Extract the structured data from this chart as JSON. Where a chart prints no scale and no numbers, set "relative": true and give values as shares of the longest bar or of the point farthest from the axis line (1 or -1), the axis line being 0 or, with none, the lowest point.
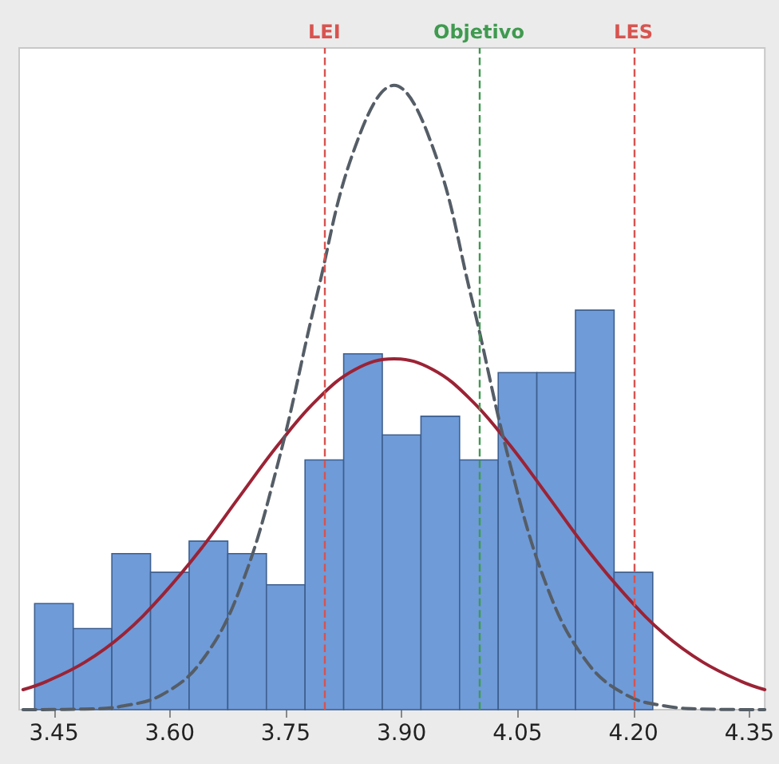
{
  "chart_data": {
    "type": "histogram",
    "relative": true,
    "tick_labels": "x",
    "bins": [
      3.425,
      3.475,
      3.525,
      3.575,
      3.625,
      3.675,
      3.725,
      3.775,
      3.825,
      3.875,
      3.925,
      3.975,
      4.025,
      4.075,
      4.125,
      4.175,
      4.225
    ],
    "values": [
      0.17,
      0.13,
      0.25,
      0.22,
      0.27,
      0.25,
      0.2,
      0.4,
      0.57,
      0.44,
      0.47,
      0.4,
      0.54,
      0.54,
      0.64,
      0.22
    ],
    "color": "#6f9bd8",
    "xlim": [
      3.405,
      4.37
    ],
    "xticks": [
      {
        "value": 3.45,
        "label": "3.45"
      },
      {
        "value": 3.6,
        "label": "3.60"
      },
      {
        "value": 3.75,
        "label": "3.75"
      },
      {
        "value": 3.9,
        "label": "3.90"
      },
      {
        "value": 4.05,
        "label": "4.05"
      },
      {
        "value": 4.2,
        "label": "4.20"
      },
      {
        "value": 4.35,
        "label": "4.35"
      }
    ],
    "series": [
      {
        "type": "line",
        "color": "#9b2335",
        "line_style": "solid",
        "x": [
          3.41,
          3.44,
          3.49,
          3.54,
          3.59,
          3.64,
          3.69,
          3.74,
          3.79,
          3.84,
          3.89,
          3.94,
          3.99,
          4.04,
          4.09,
          4.14,
          4.19,
          4.24,
          4.29,
          4.34,
          4.37
        ],
        "values": [
          0.032,
          0.045,
          0.076,
          0.121,
          0.183,
          0.257,
          0.341,
          0.424,
          0.496,
          0.545,
          0.562,
          0.545,
          0.496,
          0.424,
          0.341,
          0.257,
          0.183,
          0.121,
          0.076,
          0.045,
          0.032
        ]
      },
      {
        "type": "line",
        "color": "#555d66",
        "line_style": "dashed",
        "x": [
          3.41,
          3.49,
          3.54,
          3.59,
          3.64,
          3.69,
          3.74,
          3.79,
          3.84,
          3.89,
          3.94,
          3.99,
          4.04,
          4.09,
          4.14,
          4.19,
          4.24,
          4.29,
          4.37
        ],
        "values": [
          0,
          0.001,
          0.006,
          0.024,
          0.076,
          0.191,
          0.395,
          0.662,
          0.902,
          1,
          0.902,
          0.662,
          0.395,
          0.191,
          0.076,
          0.024,
          0.006,
          0.001,
          0
        ]
      }
    ],
    "ref_lines": [
      {
        "axis": "x",
        "value": 3.8,
        "label": "LEI",
        "color": "#d9534f",
        "line_style": "dashed"
      },
      {
        "axis": "x",
        "value": 4.0,
        "label": "Objetivo",
        "color": "#3f9a4f",
        "line_style": "dashed"
      },
      {
        "axis": "x",
        "value": 4.2,
        "label": "LES",
        "color": "#d9534f",
        "line_style": "dashed"
      }
    ]
  }
}
